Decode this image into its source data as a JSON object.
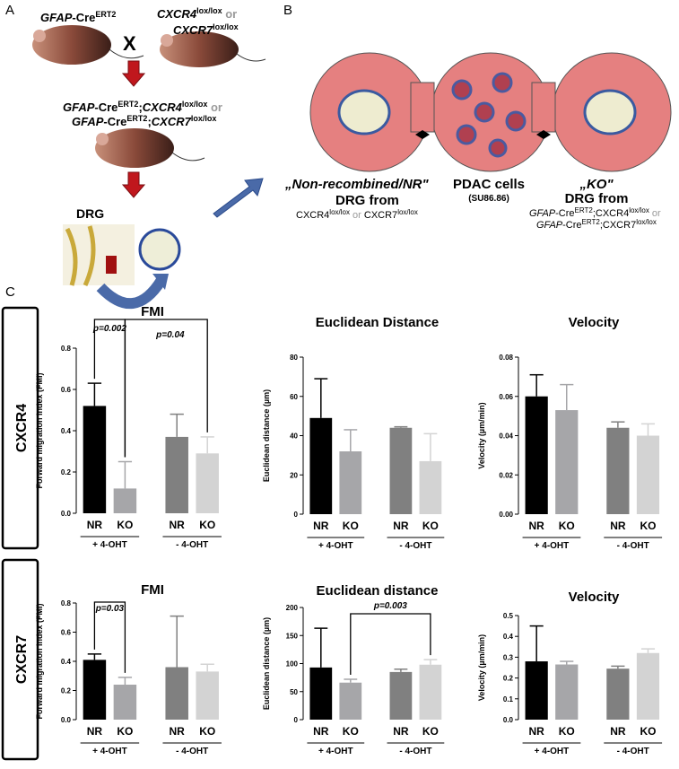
{
  "panel_labels": [
    "A",
    "B",
    "C"
  ],
  "panel_a": {
    "parent1": [
      "GFAP",
      "-Cre",
      "ERT2"
    ],
    "parent2_line1": [
      "CXCR4",
      "lox/lox",
      " or"
    ],
    "parent2_line2": [
      "CXCR7",
      "lox/lox"
    ],
    "cross": "X",
    "offspring_line1": [
      "GFAP",
      "-Cre",
      "ERT2",
      ";",
      "CXCR4",
      "lox/lox",
      " or"
    ],
    "offspring_line2": [
      "GFAP",
      "-Cre",
      "ERT2",
      ";",
      "CXCR7",
      "lox/lox"
    ],
    "tissue": "DRG"
  },
  "panel_b": {
    "left": {
      "line1": "„Non-recombined/NR\"",
      "line2": "DRG from",
      "line3": [
        "CXCR4",
        "lox/lox",
        " or ",
        "CXCR7",
        "lox/lox"
      ]
    },
    "middle": {
      "line1": "PDAC cells",
      "line2": "(SU86.86)"
    },
    "right": {
      "line1": "„KO\"",
      "line2": "DRG from",
      "line3": [
        "GFAP",
        "-Cre",
        "ERT2",
        ";CXCR4",
        "lox/lox",
        " or"
      ],
      "line4": [
        "GFAP",
        "-Cre",
        "ERT2",
        ";CXCR7",
        "lox/lox"
      ]
    }
  },
  "row_labels": [
    "CXCR4",
    "CXCR7"
  ],
  "chart_data": [
    {
      "type": "bar",
      "title": "FMI",
      "y_label": "Forward migration index (FMI)",
      "categories": [
        "NR",
        "KO",
        "NR",
        "KO"
      ],
      "values": [
        0.52,
        0.12,
        0.37,
        0.29
      ],
      "errors": [
        0.11,
        0.13,
        0.11,
        0.08
      ],
      "colors": [
        "#000000",
        "#a6a6a9",
        "#808080",
        "#d3d3d3"
      ],
      "group_labels": [
        "+ 4-OHT",
        "- 4-OHT"
      ],
      "annotations": [
        "p=0.002",
        "p=0.04"
      ],
      "ylim": [
        0,
        0.8
      ],
      "yticks": [
        {
          "value": 0,
          "label": "0.0"
        },
        0.2,
        0.4,
        0.6,
        0.8
      ]
    },
    {
      "type": "bar",
      "title": "Euclidean Distance",
      "y_label": "Euclidean distance (µm)",
      "categories": [
        "NR",
        "KO",
        "NR",
        "KO"
      ],
      "values": [
        49,
        32,
        44,
        27
      ],
      "errors": [
        20,
        11,
        0.5,
        14
      ],
      "colors": [
        "#000000",
        "#a6a6a9",
        "#808080",
        "#d3d3d3"
      ],
      "group_labels": [
        "+ 4-OHT",
        "- 4-OHT"
      ],
      "ylim": [
        0,
        80
      ],
      "yticks": [
        0,
        20,
        40,
        60,
        80
      ]
    },
    {
      "type": "bar",
      "title": "Velocity",
      "y_label": "Velocity (µm/min)",
      "categories": [
        "NR",
        "KO",
        "NR",
        "KO"
      ],
      "values": [
        0.06,
        0.053,
        0.044,
        0.04
      ],
      "errors": [
        0.011,
        0.013,
        0.003,
        0.006
      ],
      "colors": [
        "#000000",
        "#a6a6a9",
        "#808080",
        "#d3d3d3"
      ],
      "group_labels": [
        "+ 4-OHT",
        "- 4-OHT"
      ],
      "ylim": [
        0,
        0.08
      ],
      "yticks": [
        {
          "value": 0,
          "label": "0.00"
        },
        {
          "value": 0.02,
          "label": "0.02"
        },
        {
          "value": 0.04,
          "label": "0.04"
        },
        {
          "value": 0.06,
          "label": "0.06"
        },
        {
          "value": 0.08,
          "label": "0.08"
        }
      ]
    },
    {
      "type": "bar",
      "title": "FMI",
      "y_label": "Forward migration index (FMI)",
      "categories": [
        "NR",
        "KO",
        "NR",
        "KO"
      ],
      "values": [
        0.41,
        0.24,
        0.36,
        0.33
      ],
      "errors": [
        0.04,
        0.05,
        0.35,
        0.05
      ],
      "colors": [
        "#000000",
        "#a6a6a9",
        "#808080",
        "#d3d3d3"
      ],
      "group_labels": [
        "+ 4-OHT",
        "- 4-OHT"
      ],
      "annotations": [
        "p=0.03"
      ],
      "ylim": [
        0,
        0.8
      ],
      "yticks": [
        {
          "value": 0,
          "label": "0.0"
        },
        0.2,
        0.4,
        0.6,
        0.8
      ]
    },
    {
      "type": "bar",
      "title": "Euclidean distance",
      "y_label": "Euclidean distance (µm)",
      "categories": [
        "NR",
        "KO",
        "NR",
        "KO"
      ],
      "values": [
        93,
        66,
        85,
        98
      ],
      "errors": [
        70,
        6,
        5,
        9
      ],
      "colors": [
        "#000000",
        "#a6a6a9",
        "#808080",
        "#d3d3d3"
      ],
      "group_labels": [
        "+ 4-OHT",
        "- 4-OHT"
      ],
      "annotations": [
        "p=0.003"
      ],
      "ylim": [
        0,
        200
      ],
      "yticks": [
        0,
        50,
        100,
        150,
        200
      ]
    },
    {
      "type": "bar",
      "title": "Velocity",
      "y_label": "Velocity (µm/min)",
      "categories": [
        "NR",
        "KO",
        "NR",
        "KO"
      ],
      "values": [
        0.28,
        0.265,
        0.245,
        0.32
      ],
      "errors": [
        0.17,
        0.015,
        0.012,
        0.02
      ],
      "colors": [
        "#000000",
        "#a6a6a9",
        "#808080",
        "#d3d3d3"
      ],
      "group_labels": [
        "+ 4-OHT",
        "- 4-OHT"
      ],
      "ylim": [
        0,
        0.5
      ],
      "yticks": [
        {
          "value": 0,
          "label": "0.0"
        },
        0.1,
        0.2,
        0.3,
        0.4,
        0.5
      ]
    }
  ]
}
